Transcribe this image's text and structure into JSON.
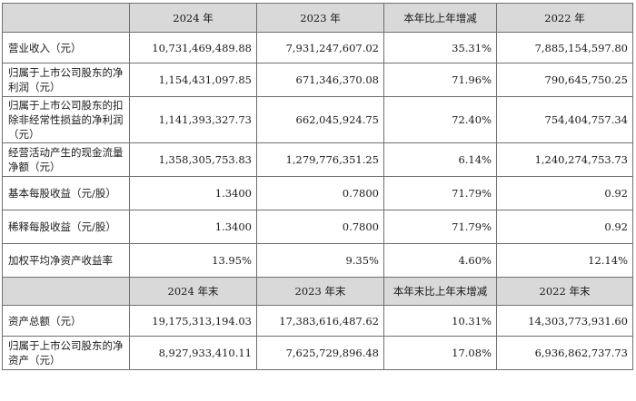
{
  "header1": [
    "2024 年",
    "2023 年",
    "本年比上年增减",
    "2022 年"
  ],
  "rows1": [
    {
      "label": "营业收入（元）",
      "v": [
        "10,731,469,489.88",
        "7,931,247,607.02",
        "35.31%",
        "7,885,154,597.80"
      ]
    },
    {
      "label": "归属于上市公司股东的净利润（元）",
      "v": [
        "1,154,431,097.85",
        "671,346,370.08",
        "71.96%",
        "790,645,750.25"
      ]
    },
    {
      "label": "归属于上市公司股东的扣除非经常性损益的净利润（元）",
      "v": [
        "1,141,393,327.73",
        "662,045,924.75",
        "72.40%",
        "754,404,757.34"
      ]
    },
    {
      "label": "经营活动产生的现金流量净额（元）",
      "v": [
        "1,358,305,753.83",
        "1,279,776,351.25",
        "6.14%",
        "1,240,274,753.73"
      ]
    },
    {
      "label": "基本每股收益（元/股）",
      "v": [
        "1.3400",
        "0.7800",
        "71.79%",
        "0.92"
      ]
    },
    {
      "label": "稀释每股收益（元/股）",
      "v": [
        "1.3400",
        "0.7800",
        "71.79%",
        "0.92"
      ]
    },
    {
      "label": "加权平均净资产收益率",
      "v": [
        "13.95%",
        "9.35%",
        "4.60%",
        "12.14%"
      ]
    }
  ],
  "header2": [
    "2024 年末",
    "2023 年末",
    "本年末比上年末增减",
    "2022 年末"
  ],
  "rows2": [
    {
      "label": "资产总额（元）",
      "v": [
        "19,175,313,194.03",
        "17,383,616,487.62",
        "10.31%",
        "14,303,773,931.60"
      ]
    },
    {
      "label": "归属于上市公司股东的净资产（元）",
      "v": [
        "8,927,933,410.11",
        "7,625,729,896.48",
        "17.08%",
        "6,936,862,737.73"
      ]
    }
  ]
}
